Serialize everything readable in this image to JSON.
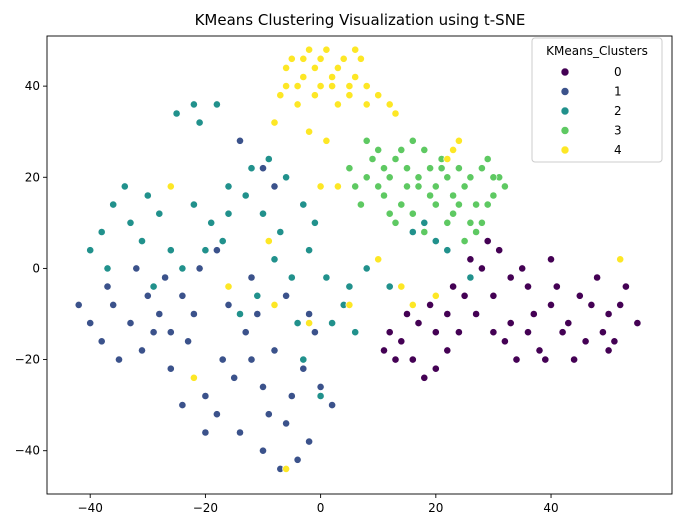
{
  "chart_data": {
    "type": "scatter",
    "title": "KMeans Clustering Visualization using t-SNE",
    "xlabel": "",
    "ylabel": "",
    "xlim": [
      -47.5,
      61
    ],
    "ylim": [
      -49.5,
      51
    ],
    "x_ticks": [
      -40,
      -20,
      0,
      20,
      40
    ],
    "x_tick_labels": [
      "−40",
      "−20",
      "0",
      "20",
      "40"
    ],
    "y_ticks": [
      -40,
      -20,
      0,
      20,
      40
    ],
    "y_tick_labels": [
      "−40",
      "−20",
      "0",
      "20",
      "40"
    ],
    "grid": false,
    "legend": {
      "title": "KMeans_Clusters",
      "placement": "top-right"
    },
    "series": [
      {
        "name": "0",
        "color": "#440154",
        "points": [
          [
            40,
            -8
          ],
          [
            45,
            -6
          ],
          [
            50,
            -10
          ],
          [
            36,
            -4
          ],
          [
            42,
            -14
          ],
          [
            48,
            -2
          ],
          [
            33,
            -12
          ],
          [
            38,
            -18
          ],
          [
            46,
            -16
          ],
          [
            52,
            -8
          ],
          [
            30,
            -6
          ],
          [
            27,
            -10
          ],
          [
            35,
            0
          ],
          [
            40,
            2
          ],
          [
            44,
            -20
          ],
          [
            50,
            -18
          ],
          [
            53,
            -4
          ],
          [
            55,
            -12
          ],
          [
            31,
            4
          ],
          [
            28,
            0
          ],
          [
            34,
            -20
          ],
          [
            24,
            -14
          ],
          [
            22,
            -18
          ],
          [
            20,
            -22
          ],
          [
            18,
            -24
          ],
          [
            16,
            -20
          ],
          [
            14,
            -16
          ],
          [
            12,
            -14
          ],
          [
            15,
            -10
          ],
          [
            19,
            -8
          ],
          [
            22,
            -10
          ],
          [
            25,
            -6
          ],
          [
            20,
            -14
          ],
          [
            17,
            -12
          ],
          [
            13,
            -20
          ],
          [
            11,
            -18
          ],
          [
            23,
            -4
          ],
          [
            26,
            2
          ],
          [
            29,
            6
          ],
          [
            32,
            -16
          ],
          [
            37,
            -10
          ],
          [
            41,
            -4
          ],
          [
            43,
            -12
          ],
          [
            47,
            -8
          ],
          [
            49,
            -14
          ],
          [
            51,
            -16
          ],
          [
            39,
            -20
          ],
          [
            36,
            -14
          ],
          [
            33,
            -2
          ],
          [
            30,
            -14
          ]
        ]
      },
      {
        "name": "1",
        "color": "#3b528b",
        "points": [
          [
            -40,
            -12
          ],
          [
            -36,
            -8
          ],
          [
            -38,
            -16
          ],
          [
            -33,
            -12
          ],
          [
            -30,
            -6
          ],
          [
            -28,
            -10
          ],
          [
            -35,
            -20
          ],
          [
            -31,
            -18
          ],
          [
            -26,
            -14
          ],
          [
            -24,
            -6
          ],
          [
            -22,
            -10
          ],
          [
            -20,
            -28
          ],
          [
            -18,
            -32
          ],
          [
            -15,
            -24
          ],
          [
            -12,
            -20
          ],
          [
            -10,
            -26
          ],
          [
            -14,
            -36
          ],
          [
            -10,
            -40
          ],
          [
            -7,
            -44
          ],
          [
            -4,
            -42
          ],
          [
            -2,
            -38
          ],
          [
            -6,
            -34
          ],
          [
            -20,
            -36
          ],
          [
            -24,
            -30
          ],
          [
            -17,
            -20
          ],
          [
            -13,
            -14
          ],
          [
            -8,
            -18
          ],
          [
            -5,
            -28
          ],
          [
            0,
            -26
          ],
          [
            2,
            -30
          ],
          [
            -26,
            -22
          ],
          [
            -29,
            -14
          ],
          [
            -37,
            -4
          ],
          [
            -42,
            -8
          ],
          [
            -23,
            -16
          ],
          [
            -16,
            -8
          ],
          [
            -11,
            -10
          ],
          [
            -9,
            -32
          ],
          [
            -3,
            -22
          ],
          [
            -1,
            -14
          ],
          [
            -21,
            0
          ],
          [
            -18,
            4
          ],
          [
            -27,
            -2
          ],
          [
            -32,
            0
          ],
          [
            -14,
            28
          ],
          [
            -10,
            22
          ],
          [
            -8,
            18
          ],
          [
            -12,
            -2
          ],
          [
            -6,
            -6
          ],
          [
            -2,
            -10
          ]
        ]
      },
      {
        "name": "2",
        "color": "#21918c",
        "points": [
          [
            -36,
            14
          ],
          [
            -33,
            10
          ],
          [
            -30,
            16
          ],
          [
            -38,
            8
          ],
          [
            -34,
            18
          ],
          [
            -31,
            6
          ],
          [
            -40,
            4
          ],
          [
            -28,
            12
          ],
          [
            -26,
            4
          ],
          [
            -24,
            0
          ],
          [
            -22,
            14
          ],
          [
            -19,
            10
          ],
          [
            -16,
            12
          ],
          [
            -17,
            6
          ],
          [
            -25,
            34
          ],
          [
            -21,
            32
          ],
          [
            -18,
            36
          ],
          [
            -22,
            36
          ],
          [
            -12,
            22
          ],
          [
            -9,
            24
          ],
          [
            -6,
            20
          ],
          [
            -8,
            2
          ],
          [
            -5,
            -2
          ],
          [
            -2,
            4
          ],
          [
            1,
            -2
          ],
          [
            4,
            -8
          ],
          [
            6,
            -14
          ],
          [
            -3,
            14
          ],
          [
            -1,
            10
          ],
          [
            -11,
            -6
          ],
          [
            -14,
            -10
          ],
          [
            -4,
            -12
          ],
          [
            2,
            -12
          ],
          [
            5,
            -4
          ],
          [
            8,
            0
          ],
          [
            12,
            -4
          ],
          [
            16,
            8
          ],
          [
            18,
            10
          ],
          [
            20,
            6
          ],
          [
            22,
            4
          ],
          [
            26,
            -2
          ],
          [
            -20,
            4
          ],
          [
            -29,
            -4
          ],
          [
            -37,
            0
          ],
          [
            -3,
            -20
          ],
          [
            0,
            -28
          ],
          [
            -7,
            8
          ],
          [
            -10,
            12
          ],
          [
            -13,
            16
          ],
          [
            -16,
            18
          ]
        ]
      },
      {
        "name": "3",
        "color": "#5ec962",
        "points": [
          [
            10,
            26
          ],
          [
            13,
            24
          ],
          [
            16,
            28
          ],
          [
            19,
            22
          ],
          [
            22,
            20
          ],
          [
            25,
            18
          ],
          [
            28,
            22
          ],
          [
            31,
            20
          ],
          [
            8,
            20
          ],
          [
            6,
            18
          ],
          [
            11,
            16
          ],
          [
            14,
            14
          ],
          [
            17,
            18
          ],
          [
            20,
            14
          ],
          [
            23,
            12
          ],
          [
            26,
            10
          ],
          [
            24,
            22
          ],
          [
            27,
            14
          ],
          [
            30,
            16
          ],
          [
            15,
            22
          ],
          [
            12,
            20
          ],
          [
            9,
            24
          ],
          [
            18,
            26
          ],
          [
            21,
            24
          ],
          [
            5,
            22
          ],
          [
            7,
            14
          ],
          [
            29,
            24
          ],
          [
            32,
            18
          ],
          [
            25,
            6
          ],
          [
            27,
            8
          ],
          [
            13,
            10
          ],
          [
            18,
            8
          ],
          [
            12,
            12
          ],
          [
            16,
            12
          ],
          [
            20,
            18
          ],
          [
            23,
            16
          ],
          [
            26,
            20
          ],
          [
            29,
            14
          ],
          [
            10,
            18
          ],
          [
            14,
            26
          ],
          [
            8,
            28
          ],
          [
            11,
            22
          ],
          [
            17,
            20
          ],
          [
            19,
            16
          ],
          [
            22,
            10
          ],
          [
            24,
            14
          ],
          [
            28,
            10
          ],
          [
            30,
            20
          ],
          [
            15,
            18
          ],
          [
            21,
            22
          ]
        ]
      },
      {
        "name": "4",
        "color": "#fde725",
        "points": [
          [
            -6,
            44
          ],
          [
            -3,
            42
          ],
          [
            0,
            46
          ],
          [
            3,
            44
          ],
          [
            6,
            42
          ],
          [
            -4,
            40
          ],
          [
            -1,
            38
          ],
          [
            2,
            40
          ],
          [
            5,
            38
          ],
          [
            8,
            40
          ],
          [
            -2,
            48
          ],
          [
            1,
            48
          ],
          [
            4,
            46
          ],
          [
            -5,
            46
          ],
          [
            7,
            46
          ],
          [
            0,
            40
          ],
          [
            -7,
            38
          ],
          [
            -8,
            32
          ],
          [
            10,
            38
          ],
          [
            12,
            36
          ],
          [
            13,
            34
          ],
          [
            24,
            28
          ],
          [
            23,
            26
          ],
          [
            22,
            24
          ],
          [
            -26,
            18
          ],
          [
            -9,
            6
          ],
          [
            -8,
            -8
          ],
          [
            -16,
            -4
          ],
          [
            -22,
            -24
          ],
          [
            -2,
            -12
          ],
          [
            0,
            18
          ],
          [
            3,
            18
          ],
          [
            5,
            -8
          ],
          [
            10,
            2
          ],
          [
            14,
            -4
          ],
          [
            16,
            -8
          ],
          [
            20,
            -6
          ],
          [
            52,
            2
          ],
          [
            -6,
            -44
          ],
          [
            -2,
            30
          ],
          [
            1,
            28
          ],
          [
            -4,
            36
          ],
          [
            6,
            48
          ],
          [
            3,
            36
          ],
          [
            -1,
            44
          ],
          [
            2,
            42
          ],
          [
            -3,
            46
          ],
          [
            5,
            40
          ],
          [
            -6,
            40
          ],
          [
            8,
            36
          ]
        ]
      }
    ]
  }
}
